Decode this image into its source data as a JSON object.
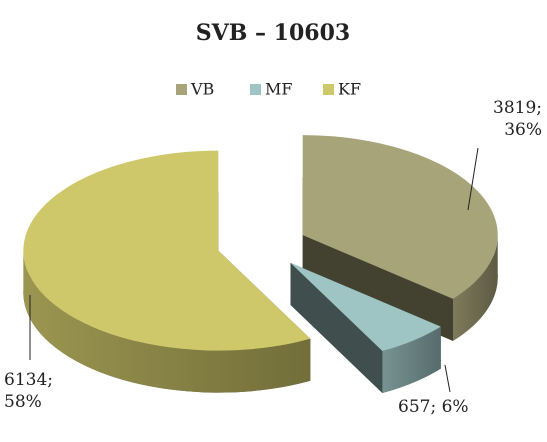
{
  "chart_data": {
    "type": "pie",
    "title": "SVB – 10603",
    "categories": [
      "VB",
      "MF",
      "KF"
    ],
    "values": [
      3819,
      657,
      6134
    ],
    "value_labels": [
      "3819; 36%",
      "657; 6%",
      "6134; 58%"
    ],
    "colors": [
      "#a8a47a",
      "#9fc4c4",
      "#cfc86a"
    ],
    "legend": "top"
  }
}
